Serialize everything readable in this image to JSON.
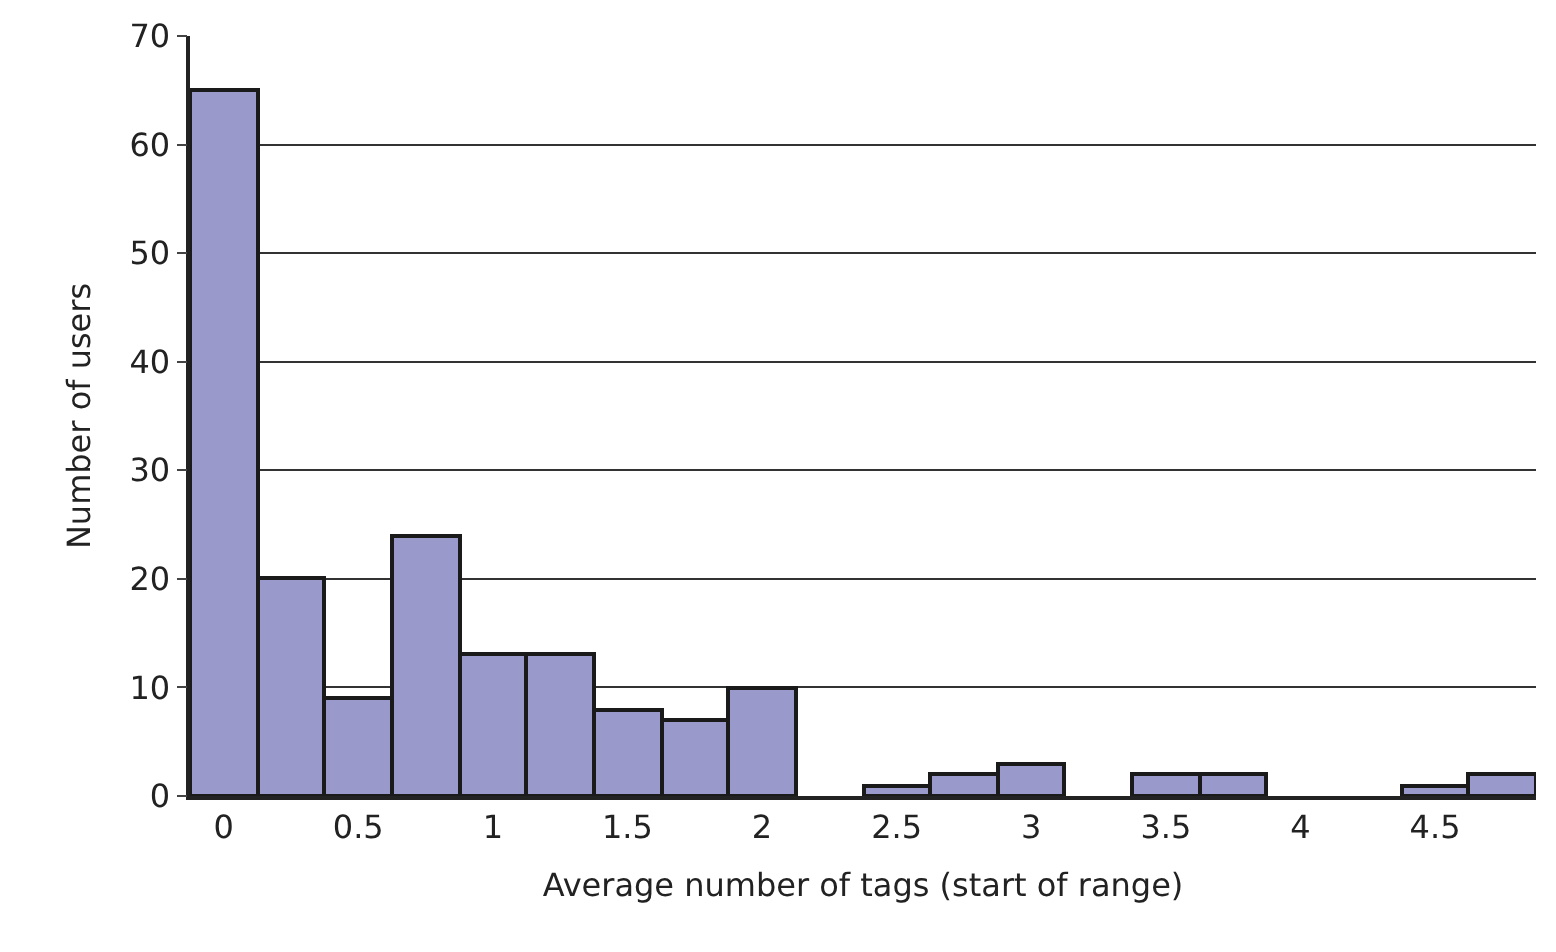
{
  "chart_data": {
    "type": "bar",
    "xlabel": "Average number of tags (start of range)",
    "ylabel": "Number of users",
    "categories": [
      "0",
      null,
      "0.5",
      null,
      "1",
      null,
      "1.5",
      null,
      "2",
      null,
      "2.5",
      null,
      "3",
      null,
      "3.5",
      null,
      "4",
      null,
      "4.5",
      null
    ],
    "values": [
      65,
      20,
      9,
      24,
      13,
      13,
      8,
      7,
      10,
      0,
      1,
      2,
      3,
      0,
      2,
      2,
      0,
      0,
      1,
      2
    ],
    "color": "#9999cc",
    "ylim": [
      0,
      70
    ],
    "yticks": [
      0,
      10,
      20,
      30,
      40,
      50,
      60,
      70
    ],
    "grid": "y"
  }
}
